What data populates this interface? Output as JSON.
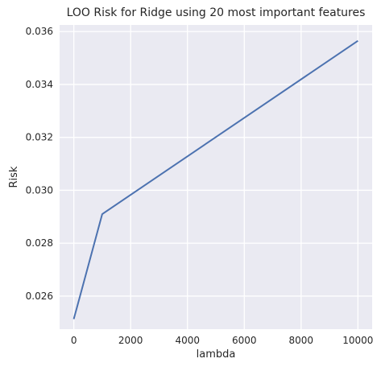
{
  "chart_data": {
    "type": "line",
    "title": "LOO Risk for Ridge using 20 most important features",
    "xlabel": "lambda",
    "ylabel": "Risk",
    "xlim": [
      -500,
      10500
    ],
    "ylim": [
      0.02475,
      0.03625
    ],
    "xticks": [
      0,
      2000,
      4000,
      6000,
      8000,
      10000
    ],
    "xtick_labels": [
      "0",
      "2000",
      "4000",
      "6000",
      "8000",
      "10000"
    ],
    "yticks": [
      0.026,
      0.028,
      0.03,
      0.032,
      0.034,
      0.036
    ],
    "ytick_labels": [
      "0.026",
      "0.028",
      "0.030",
      "0.032",
      "0.034",
      "0.036"
    ],
    "grid": true,
    "legend": "none",
    "series": [
      {
        "x": [
          0,
          1,
          10,
          100,
          1000,
          10000
        ],
        "y": [
          0.02513,
          0.02514,
          0.02518,
          0.02553,
          0.0291,
          0.03565
        ]
      }
    ],
    "colors": {
      "background": "#eaeaf2",
      "grid": "#ffffff",
      "line": "#4c72b0",
      "text": "#262626"
    }
  }
}
